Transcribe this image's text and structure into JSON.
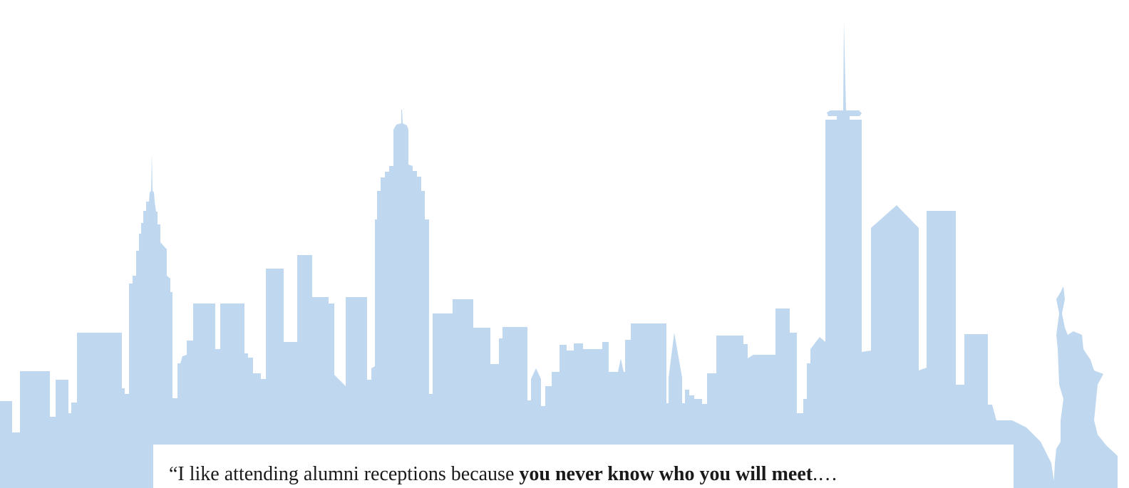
{
  "quote": {
    "lead": "“I like attending alumni receptions because ",
    "emphasis": "you never know who you will meet",
    "trail": ".…"
  }
}
